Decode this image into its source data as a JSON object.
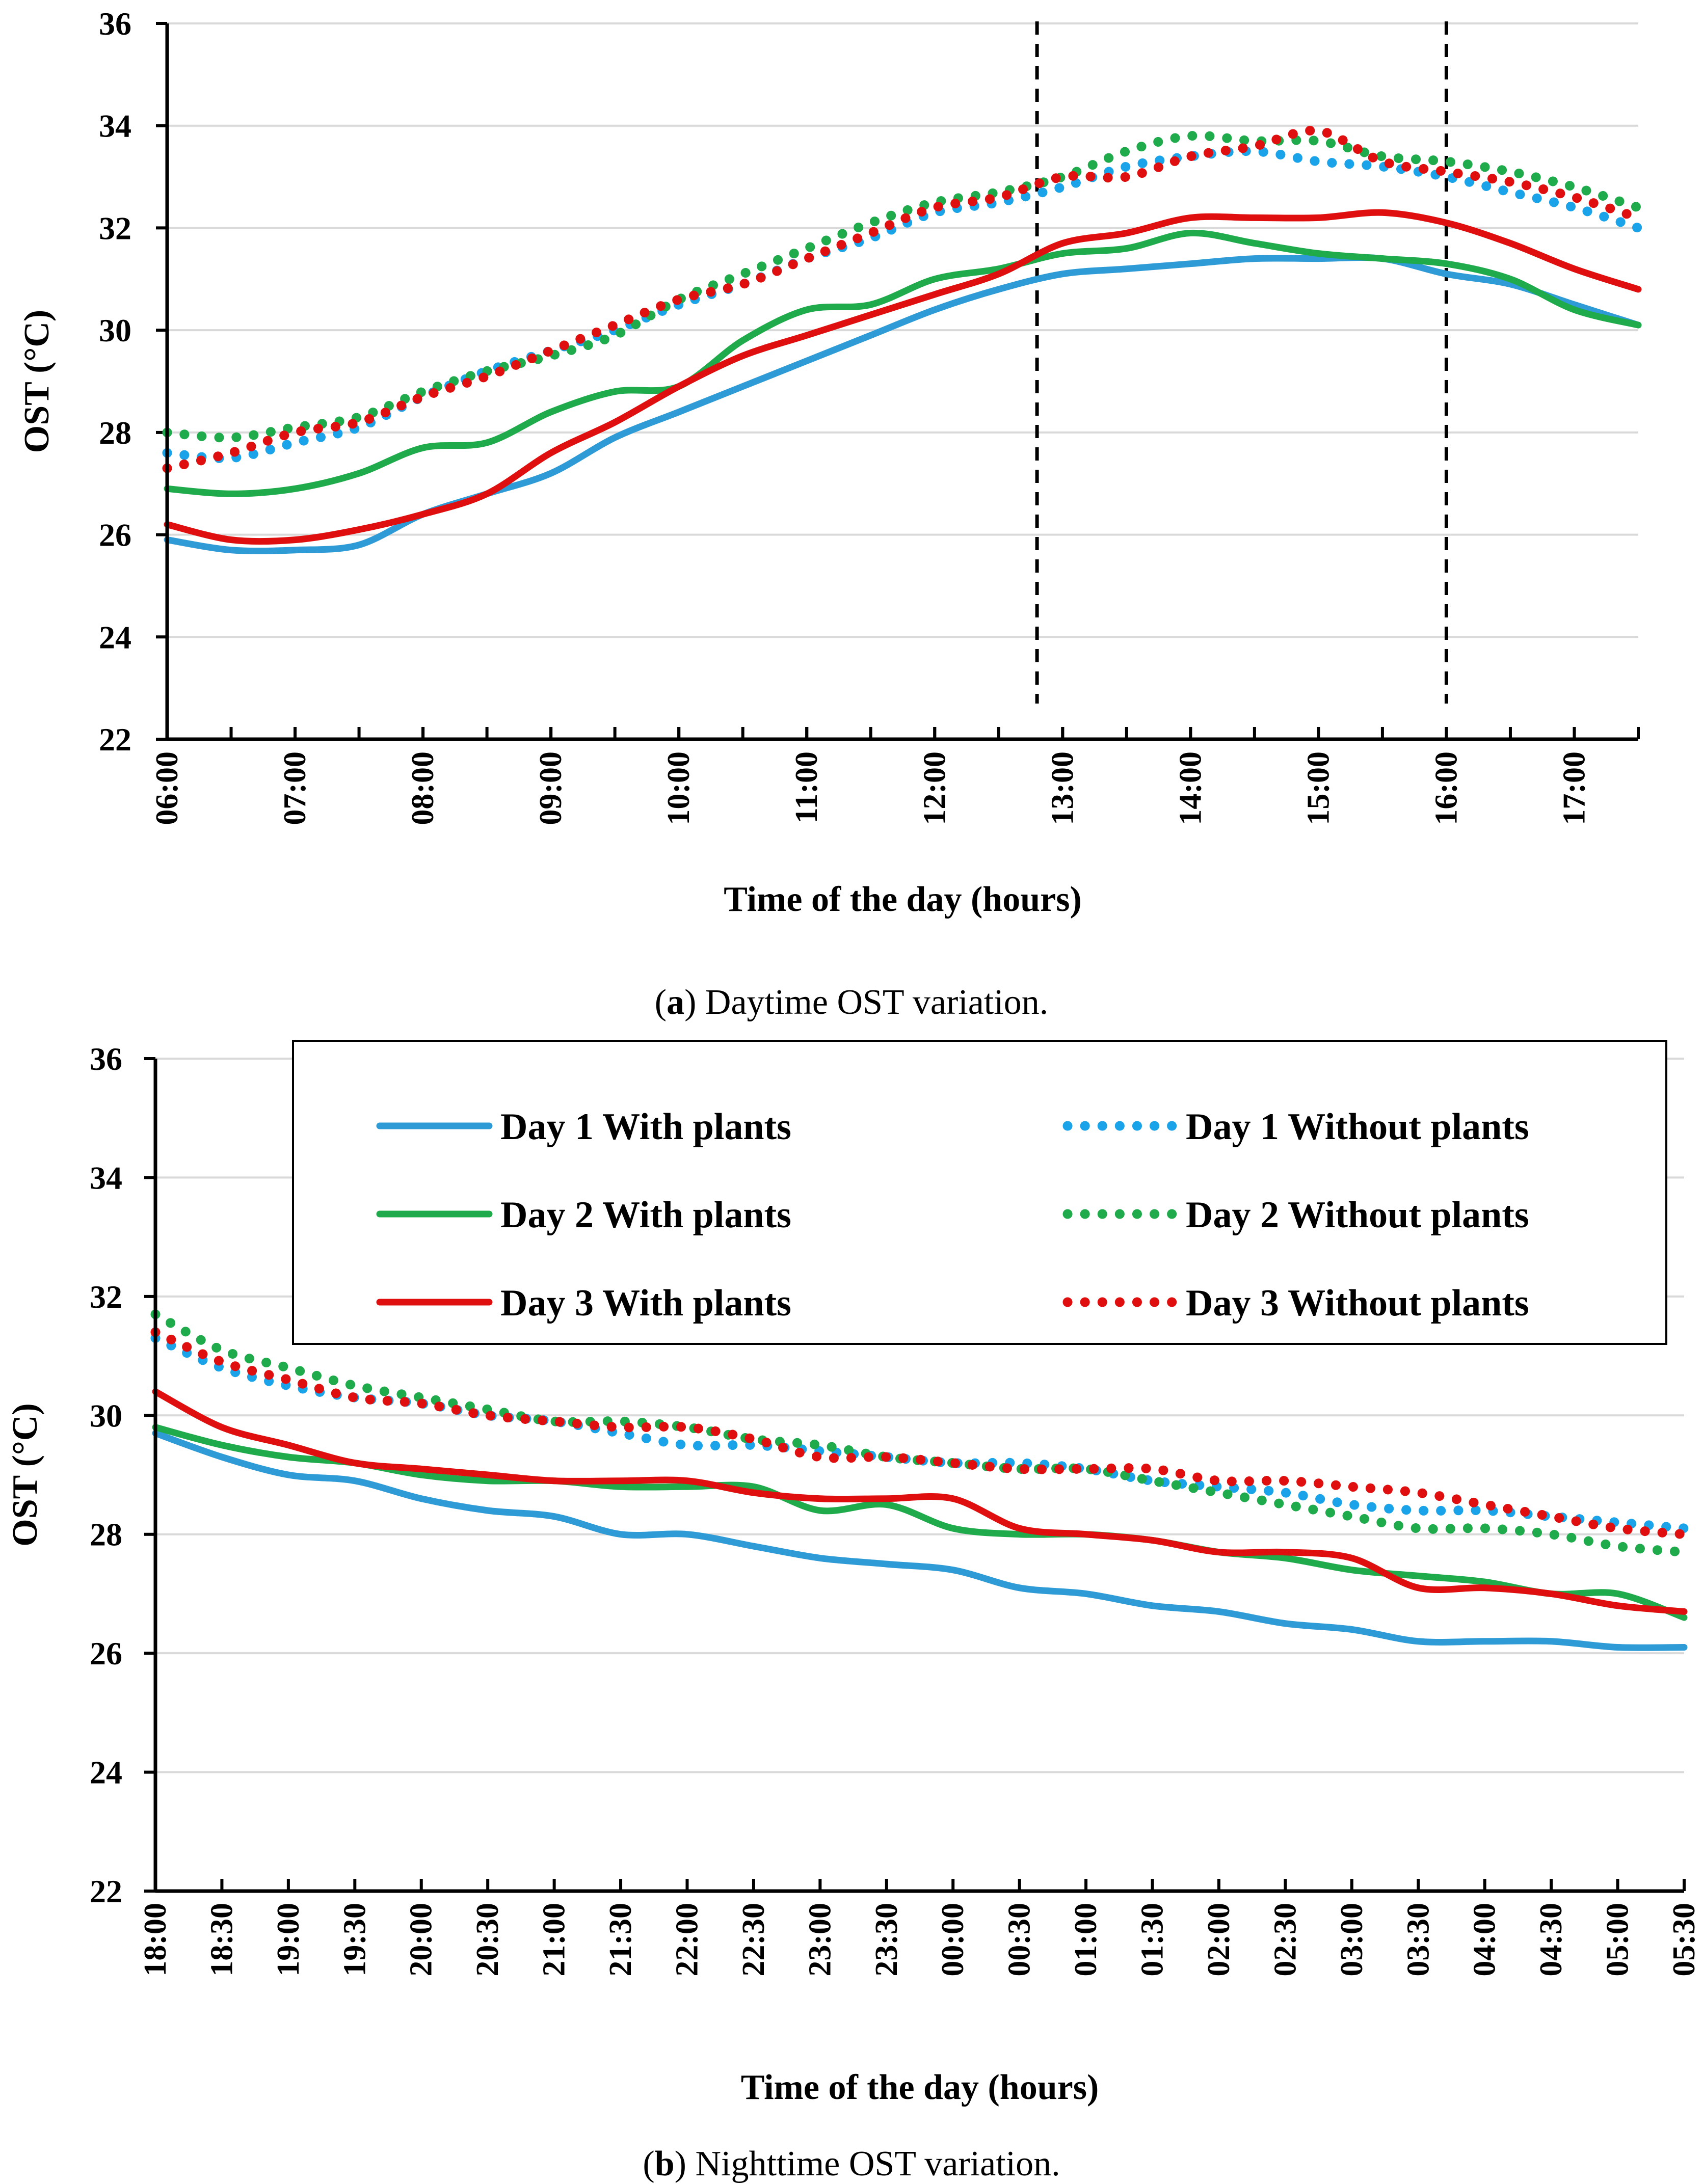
{
  "chart_data": [
    {
      "id": "a",
      "type": "line",
      "caption": {
        "prefix": "(",
        "letter": "a",
        "suffix": ") Daytime OST variation."
      },
      "xlabel": "Time of the day (hours)",
      "ylabel": "OST (°C)",
      "ylim": [
        22,
        36
      ],
      "yticks": [
        "22",
        "24",
        "26",
        "28",
        "30",
        "32",
        "34",
        "36"
      ],
      "x_unit": "hours",
      "xlim": [
        6,
        17.5
      ],
      "xtick_labels": [
        "06:00",
        "07:00",
        "08:00",
        "09:00",
        "10:00",
        "11:00",
        "12:00",
        "13:00",
        "14:00",
        "15:00",
        "16:00",
        "17:00"
      ],
      "xtick_values": [
        6,
        7,
        8,
        9,
        10,
        11,
        12,
        13,
        14,
        15,
        16,
        17
      ],
      "minor_tick_step": 0.5,
      "grid": true,
      "vlines": [
        12.8,
        16.0
      ],
      "x": [
        6.0,
        6.5,
        7.0,
        7.5,
        8.0,
        8.5,
        9.0,
        9.5,
        10.0,
        10.5,
        11.0,
        11.5,
        12.0,
        12.5,
        13.0,
        13.5,
        14.0,
        14.5,
        15.0,
        15.5,
        16.0,
        16.5,
        17.0,
        17.5
      ],
      "series": [
        {
          "name": "Day 1 With plants",
          "style": "solid",
          "color": "#2E9BD6",
          "values": [
            25.9,
            25.7,
            25.7,
            25.8,
            26.4,
            26.8,
            27.2,
            27.9,
            28.4,
            28.9,
            29.4,
            29.9,
            30.4,
            30.8,
            31.1,
            31.2,
            31.3,
            31.4,
            31.4,
            31.4,
            31.1,
            30.9,
            30.5,
            30.1
          ]
        },
        {
          "name": "Day 2 With plants",
          "style": "solid",
          "color": "#1FAA4B",
          "values": [
            26.9,
            26.8,
            26.9,
            27.2,
            27.7,
            27.8,
            28.4,
            28.8,
            28.9,
            29.8,
            30.4,
            30.5,
            31.0,
            31.2,
            31.5,
            31.6,
            31.9,
            31.7,
            31.5,
            31.4,
            31.3,
            31.0,
            30.4,
            30.1
          ]
        },
        {
          "name": "Day 3 With plants",
          "style": "solid",
          "color": "#E00F0F",
          "values": [
            26.2,
            25.9,
            25.9,
            26.1,
            26.4,
            26.8,
            27.6,
            28.2,
            28.9,
            29.5,
            29.9,
            30.3,
            30.7,
            31.1,
            31.7,
            31.9,
            32.2,
            32.2,
            32.2,
            32.3,
            32.1,
            31.7,
            31.2,
            30.8
          ]
        },
        {
          "name": "Day 1 Without plants",
          "style": "dotted",
          "color": "#1AA3E8",
          "values": [
            27.6,
            27.5,
            27.8,
            28.1,
            28.7,
            29.2,
            29.6,
            30.0,
            30.5,
            30.9,
            31.4,
            31.8,
            32.3,
            32.5,
            32.8,
            33.2,
            33.4,
            33.5,
            33.3,
            33.2,
            33.0,
            32.7,
            32.4,
            32.0
          ]
        },
        {
          "name": "Day 2 Without plants",
          "style": "dotted",
          "color": "#1FAA4B",
          "values": [
            28.0,
            27.9,
            28.1,
            28.3,
            28.8,
            29.2,
            29.5,
            29.9,
            30.6,
            31.1,
            31.6,
            32.1,
            32.5,
            32.7,
            33.0,
            33.5,
            33.8,
            33.7,
            33.7,
            33.4,
            33.3,
            33.1,
            32.8,
            32.4
          ]
        },
        {
          "name": "Day 3 Without plants",
          "style": "dotted",
          "color": "#E00F0F",
          "values": [
            27.3,
            27.6,
            28.0,
            28.2,
            28.7,
            29.1,
            29.6,
            30.1,
            30.6,
            30.9,
            31.4,
            31.9,
            32.4,
            32.6,
            33.0,
            33.0,
            33.4,
            33.6,
            33.9,
            33.3,
            33.1,
            32.9,
            32.6,
            32.2
          ]
        }
      ]
    },
    {
      "id": "b",
      "type": "line",
      "caption": {
        "prefix": "(",
        "letter": "b",
        "suffix": ") Nighttime OST variation."
      },
      "xlabel": "Time of the day (hours)",
      "ylabel": "OST (°C)",
      "ylim": [
        22,
        36
      ],
      "yticks": [
        "22",
        "24",
        "26",
        "28",
        "30",
        "32",
        "34",
        "36"
      ],
      "x_unit": "hours since 18:00",
      "xlim": [
        0,
        11.5
      ],
      "xtick_labels": [
        "18:00",
        "18:30",
        "19:00",
        "19:30",
        "20:00",
        "20:30",
        "21:00",
        "21:30",
        "22:00",
        "22:30",
        "23:00",
        "23:30",
        "00:00",
        "00:30",
        "01:00",
        "01:30",
        "02:00",
        "02:30",
        "03:00",
        "03:30",
        "04:00",
        "04:30",
        "05:00",
        "05:30"
      ],
      "xtick_values": [
        0,
        0.5,
        1,
        1.5,
        2,
        2.5,
        3,
        3.5,
        4,
        4.5,
        5,
        5.5,
        6,
        6.5,
        7,
        7.5,
        8,
        8.5,
        9,
        9.5,
        10,
        10.5,
        11,
        11.5
      ],
      "grid": true,
      "legend": "top-right",
      "x": [
        0,
        0.5,
        1,
        1.5,
        2,
        2.5,
        3,
        3.5,
        4,
        4.5,
        5,
        5.5,
        6,
        6.5,
        7,
        7.5,
        8,
        8.5,
        9,
        9.5,
        10,
        10.5,
        11,
        11.5
      ],
      "series": [
        {
          "name": "Day 1 With plants",
          "style": "solid",
          "color": "#2E9BD6",
          "values": [
            29.7,
            29.3,
            29.0,
            28.9,
            28.6,
            28.4,
            28.3,
            28.0,
            28.0,
            27.8,
            27.6,
            27.5,
            27.4,
            27.1,
            27.0,
            26.8,
            26.7,
            26.5,
            26.4,
            26.2,
            26.2,
            26.2,
            26.1,
            26.1
          ]
        },
        {
          "name": "Day 2 With plants",
          "style": "solid",
          "color": "#1FAA4B",
          "values": [
            29.8,
            29.5,
            29.3,
            29.2,
            29.0,
            28.9,
            28.9,
            28.8,
            28.8,
            28.8,
            28.4,
            28.5,
            28.1,
            28.0,
            28.0,
            27.9,
            27.7,
            27.6,
            27.4,
            27.3,
            27.2,
            27.0,
            27.0,
            26.6
          ]
        },
        {
          "name": "Day 3 With plants",
          "style": "solid",
          "color": "#E00F0F",
          "values": [
            30.4,
            29.8,
            29.5,
            29.2,
            29.1,
            29.0,
            28.9,
            28.9,
            28.9,
            28.7,
            28.6,
            28.6,
            28.6,
            28.1,
            28.0,
            27.9,
            27.7,
            27.7,
            27.6,
            27.1,
            27.1,
            27.0,
            26.8,
            26.7
          ]
        },
        {
          "name": "Day 1 Without plants",
          "style": "dotted",
          "color": "#1AA3E8",
          "values": [
            31.3,
            30.8,
            30.5,
            30.3,
            30.2,
            30.0,
            29.9,
            29.7,
            29.5,
            29.5,
            29.4,
            29.3,
            29.2,
            29.2,
            29.1,
            28.9,
            28.8,
            28.7,
            28.5,
            28.4,
            28.4,
            28.3,
            28.2,
            28.1
          ]
        },
        {
          "name": "Day 2 Without plants",
          "style": "dotted",
          "color": "#1FAA4B",
          "values": [
            31.7,
            31.1,
            30.8,
            30.5,
            30.3,
            30.1,
            29.9,
            29.9,
            29.8,
            29.6,
            29.5,
            29.3,
            29.2,
            29.1,
            29.1,
            28.9,
            28.7,
            28.5,
            28.3,
            28.1,
            28.1,
            28.0,
            27.8,
            27.7
          ]
        },
        {
          "name": "Day 3 Without plants",
          "style": "dotted",
          "color": "#E00F0F",
          "values": [
            31.4,
            30.9,
            30.6,
            30.3,
            30.2,
            30.0,
            29.9,
            29.8,
            29.8,
            29.6,
            29.3,
            29.3,
            29.2,
            29.1,
            29.1,
            29.1,
            28.9,
            28.9,
            28.8,
            28.7,
            28.5,
            28.3,
            28.1,
            28.0
          ]
        }
      ]
    }
  ],
  "legend": {
    "items": [
      {
        "label": "Day 1 With plants",
        "style": "solid",
        "color": "#2E9BD6"
      },
      {
        "label": "Day 1 Without plants",
        "style": "dotted",
        "color": "#1AA3E8"
      },
      {
        "label": "Day 2 With plants",
        "style": "solid",
        "color": "#1FAA4B"
      },
      {
        "label": "Day 2 Without plants",
        "style": "dotted",
        "color": "#1FAA4B"
      },
      {
        "label": "Day 3 With plants",
        "style": "solid",
        "color": "#E00F0F"
      },
      {
        "label": "Day 3 Without plants",
        "style": "dotted",
        "color": "#E00F0F"
      }
    ]
  }
}
